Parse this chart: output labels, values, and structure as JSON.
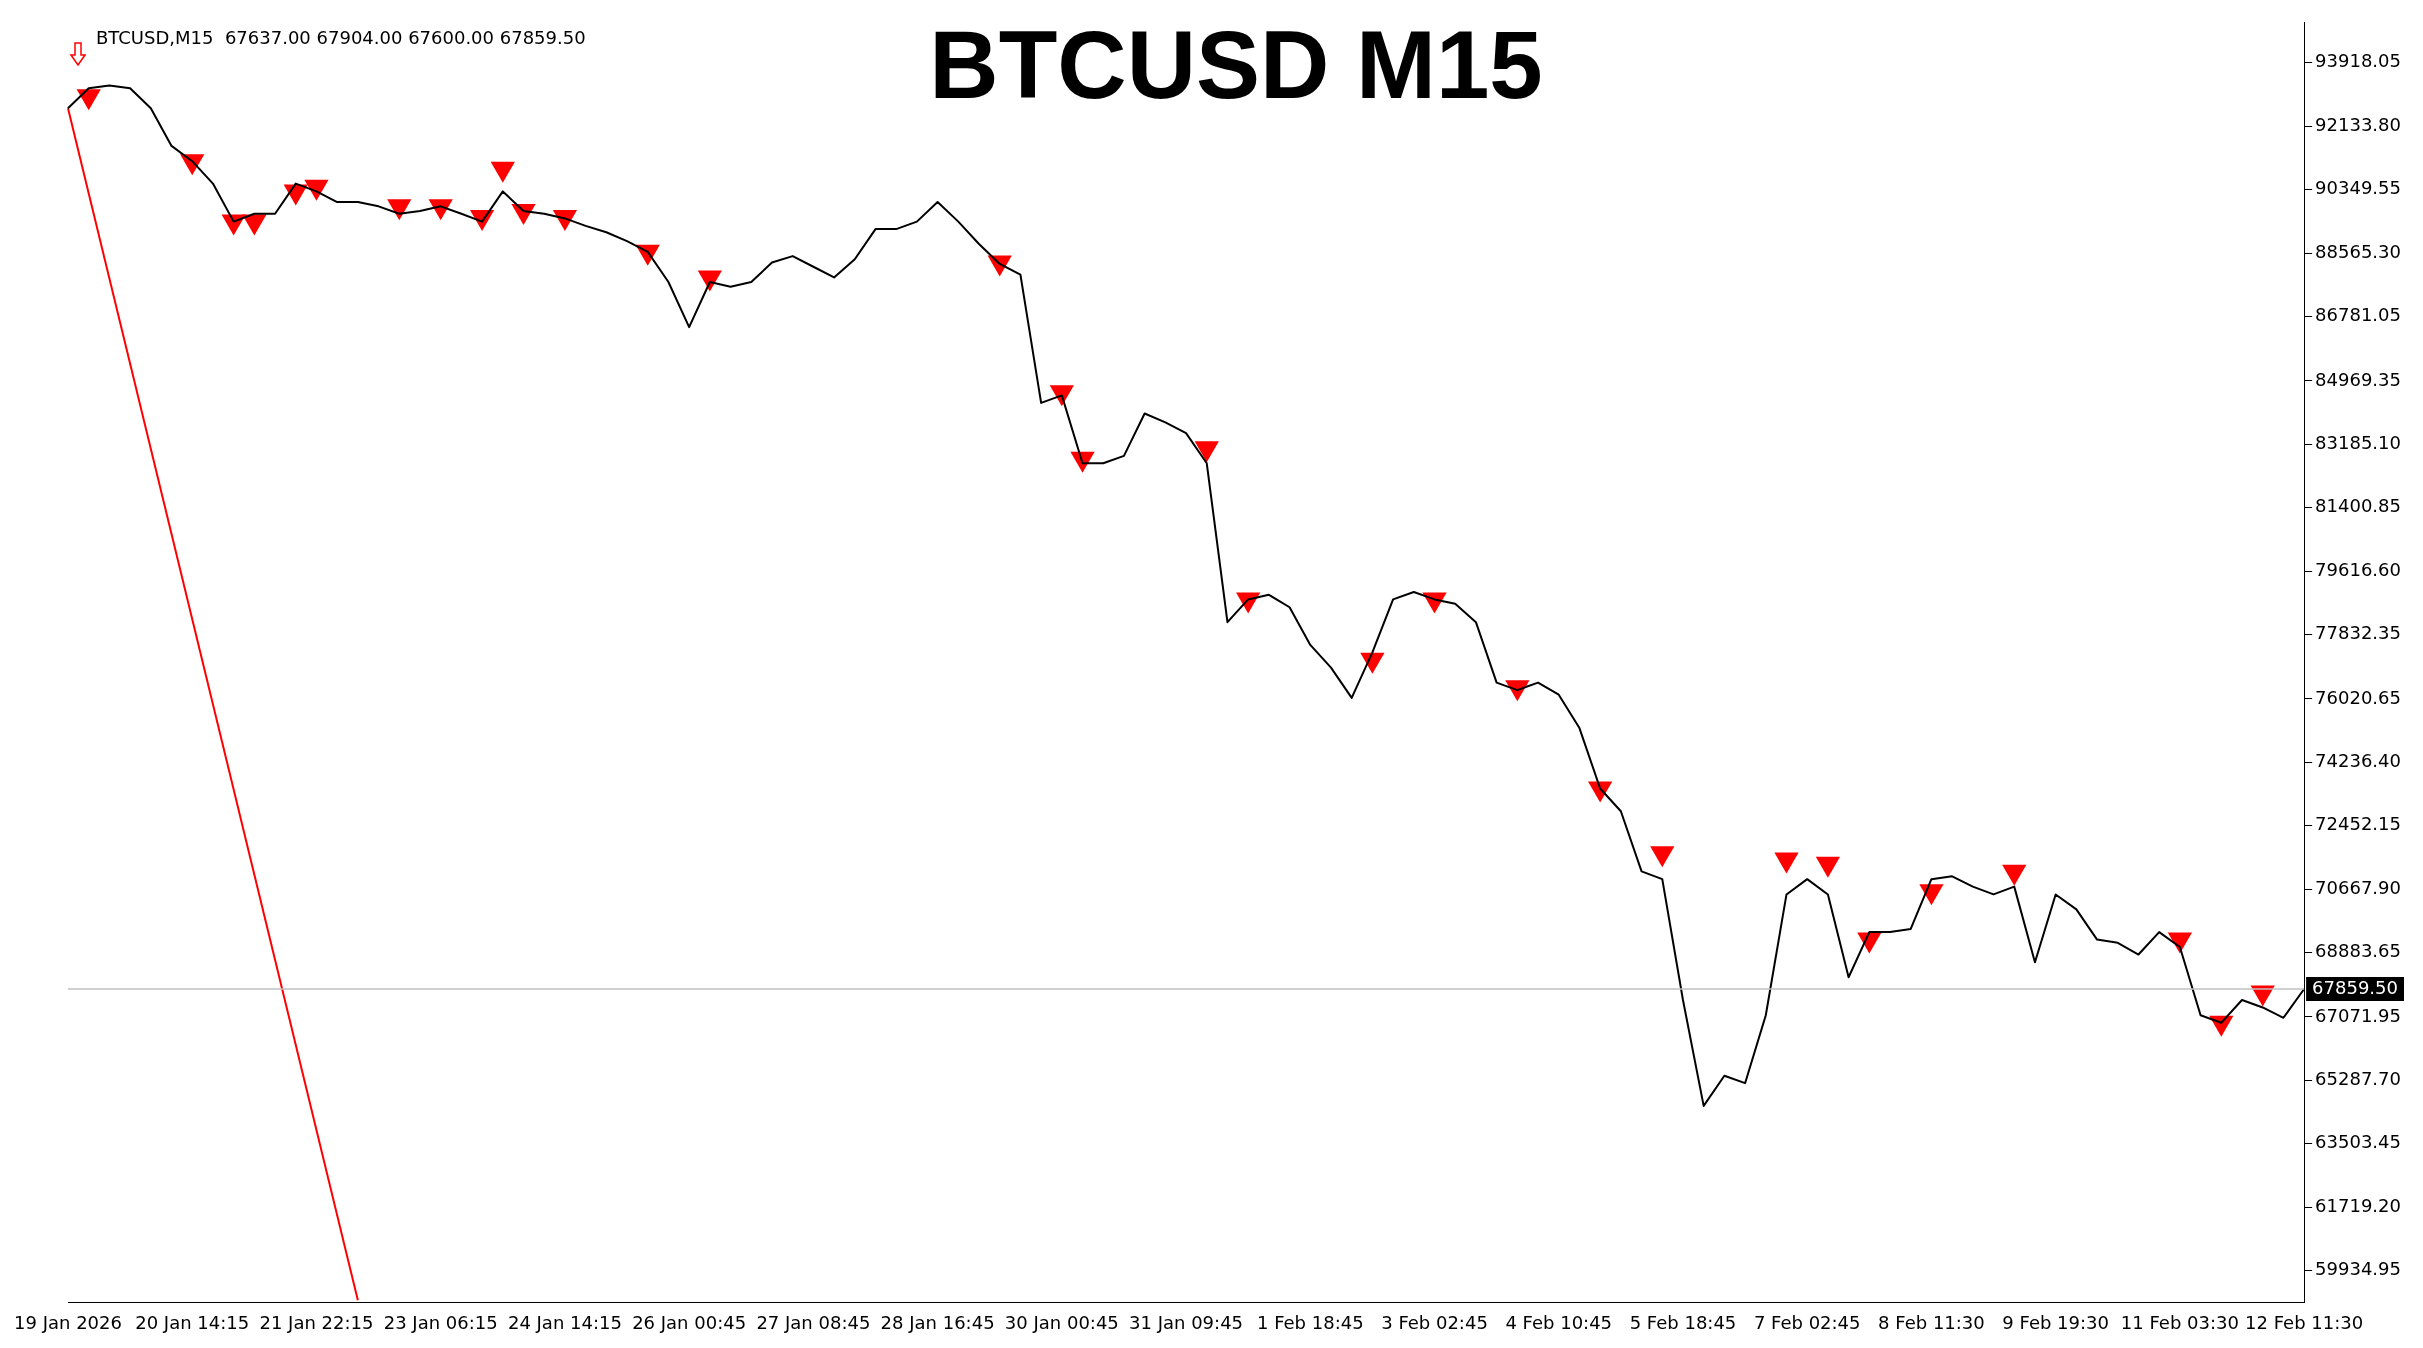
{
  "chart_data": {
    "type": "line",
    "title": "BTCUSD M15",
    "annotations": [
      "BTCUSD,M15  67637.00 67904.00 67600.00 67859.50"
    ],
    "categories": [
      "19 Jan 2026",
      null,
      null,
      null,
      null,
      null,
      "20 Jan 14:15",
      null,
      null,
      null,
      null,
      null,
      "21 Jan 22:15",
      null,
      null,
      null,
      null,
      null,
      "23 Jan 06:15",
      null,
      null,
      null,
      null,
      null,
      "24 Jan 14:15",
      null,
      null,
      null,
      null,
      null,
      "26 Jan 00:45",
      null,
      null,
      null,
      null,
      null,
      "27 Jan 08:45",
      null,
      null,
      null,
      null,
      null,
      "28 Jan 16:45",
      null,
      null,
      null,
      null,
      null,
      "30 Jan 00:45",
      null,
      null,
      null,
      null,
      null,
      "31 Jan 09:45",
      null,
      null,
      null,
      null,
      null,
      "1 Feb 18:45",
      null,
      null,
      null,
      null,
      null,
      "3 Feb 02:45",
      null,
      null,
      null,
      null,
      null,
      "4 Feb 10:45",
      null,
      null,
      null,
      null,
      null,
      "5 Feb 18:45",
      null,
      null,
      null,
      null,
      null,
      "7 Feb 02:45",
      null,
      null,
      null,
      null,
      null,
      "8 Feb 11:30",
      null,
      null,
      null,
      null,
      null,
      "9 Feb 19:30",
      null,
      null,
      null,
      null,
      null,
      "11 Feb 03:30",
      null,
      null,
      null,
      null,
      null,
      "12 Feb 11:30"
    ],
    "series": [
      {
        "type": "line",
        "color": "#000000",
        "values": [
          92640,
          93200,
          93280,
          93200,
          92640,
          91580,
          91150,
          90520,
          89450,
          89670,
          89670,
          90520,
          90300,
          90000,
          90000,
          89880,
          89670,
          89750,
          89880,
          89670,
          89450,
          90300,
          89750,
          89670,
          89540,
          89330,
          89150,
          88900,
          88600,
          87750,
          86480,
          87750,
          87620,
          87750,
          88300,
          88480,
          88180,
          87880,
          88390,
          89240,
          89240,
          89450,
          90000,
          89450,
          88820,
          88260,
          87960,
          84350,
          84560,
          82650,
          82650,
          82860,
          84050,
          83800,
          83500,
          82650,
          78180,
          78820,
          78950,
          78600,
          77540,
          76900,
          76050,
          77330,
          78820,
          79030,
          78820,
          78700,
          78180,
          76480,
          76270,
          76480,
          76140,
          75200,
          73500,
          72860,
          71170,
          70950,
          67550,
          64570,
          65420,
          65210,
          67120,
          70520,
          70950,
          70520,
          68190,
          69460,
          69460,
          69550,
          70950,
          71030,
          70740,
          70520,
          70740,
          68610,
          70520,
          70100,
          69250,
          69160,
          68830,
          69460,
          69040,
          67120,
          66910,
          67550,
          67340,
          67050,
          67860
        ]
      },
      {
        "type": "scatter",
        "color": "#ff0000",
        "marker": "triangle",
        "values": [
          null,
          92980,
          null,
          null,
          null,
          null,
          91150,
          null,
          89450,
          89450,
          null,
          90300,
          90430,
          null,
          null,
          null,
          89880,
          null,
          89880,
          null,
          89580,
          90940,
          89750,
          null,
          89580,
          null,
          null,
          null,
          88600,
          null,
          null,
          87880,
          null,
          null,
          null,
          null,
          null,
          null,
          null,
          null,
          null,
          null,
          null,
          null,
          null,
          88300,
          null,
          null,
          84650,
          82780,
          null,
          null,
          null,
          null,
          null,
          83070,
          null,
          78820,
          null,
          null,
          null,
          null,
          null,
          77120,
          null,
          null,
          78820,
          null,
          null,
          null,
          76350,
          null,
          null,
          null,
          73500,
          null,
          null,
          71680,
          null,
          null,
          null,
          null,
          null,
          71500,
          null,
          71380,
          null,
          69250,
          null,
          null,
          70610,
          null,
          null,
          null,
          71160,
          null,
          null,
          null,
          null,
          null,
          null,
          null,
          69250,
          null,
          66910,
          null,
          67760,
          null,
          null
        ]
      },
      {
        "type": "line",
        "color": "#ff0000",
        "values": [
          92640,
          null,
          null,
          null,
          null,
          null,
          null,
          null,
          null,
          null,
          null,
          null,
          null,
          null,
          59100,
          null,
          null,
          null,
          null,
          null,
          null,
          null,
          null,
          null,
          null,
          null,
          null,
          null,
          null,
          null,
          null,
          null,
          null,
          null,
          null,
          null,
          null,
          null,
          null,
          null,
          null,
          null,
          null,
          null,
          null,
          null,
          null,
          null,
          null,
          null,
          null,
          null,
          null,
          null,
          null,
          null,
          null,
          null,
          null,
          null,
          null,
          null,
          null,
          null,
          null,
          null,
          null,
          null,
          null,
          null,
          null,
          null,
          null,
          null,
          null,
          null,
          null,
          null,
          null,
          null,
          null,
          null,
          null,
          null,
          null,
          null,
          null,
          null,
          null,
          null,
          null,
          null,
          null,
          null,
          null,
          null,
          null,
          null,
          null,
          null,
          null,
          null,
          null,
          null,
          null,
          null,
          null,
          null,
          null
        ]
      }
    ],
    "ylim": [
      59042,
      95066
    ],
    "yticks": [
      {
        "value": 93918.05,
        "label": "93918.05"
      },
      {
        "value": 92133.8,
        "label": "92133.80"
      },
      {
        "value": 90349.55,
        "label": "90349.55"
      },
      {
        "value": 88565.3,
        "label": "88565.30"
      },
      {
        "value": 86781.05,
        "label": "86781.05"
      },
      {
        "value": 84969.35,
        "label": "84969.35"
      },
      {
        "value": 83185.1,
        "label": "83185.10"
      },
      {
        "value": 81400.85,
        "label": "81400.85"
      },
      {
        "value": 79616.6,
        "label": "79616.60"
      },
      {
        "value": 77832.35,
        "label": "77832.35"
      },
      {
        "value": 76020.65,
        "label": "76020.65"
      },
      {
        "value": 74236.4,
        "label": "74236.40"
      },
      {
        "value": 72452.15,
        "label": "72452.15"
      },
      {
        "value": 70667.9,
        "label": "70667.90"
      },
      {
        "value": 68883.65,
        "label": "68883.65"
      },
      {
        "value": 67071.95,
        "label": "67071.95"
      },
      {
        "value": 65287.7,
        "label": "65287.70"
      },
      {
        "value": 63503.45,
        "label": "63503.45"
      },
      {
        "value": 61719.2,
        "label": "61719.20"
      },
      {
        "value": 59934.95,
        "label": "59934.95"
      }
    ],
    "ref_lines": [
      {
        "axis": "y",
        "value": 67859.5,
        "label": "67859.50",
        "color": "#c0c0c0"
      }
    ],
    "grid": false,
    "legend": false
  }
}
